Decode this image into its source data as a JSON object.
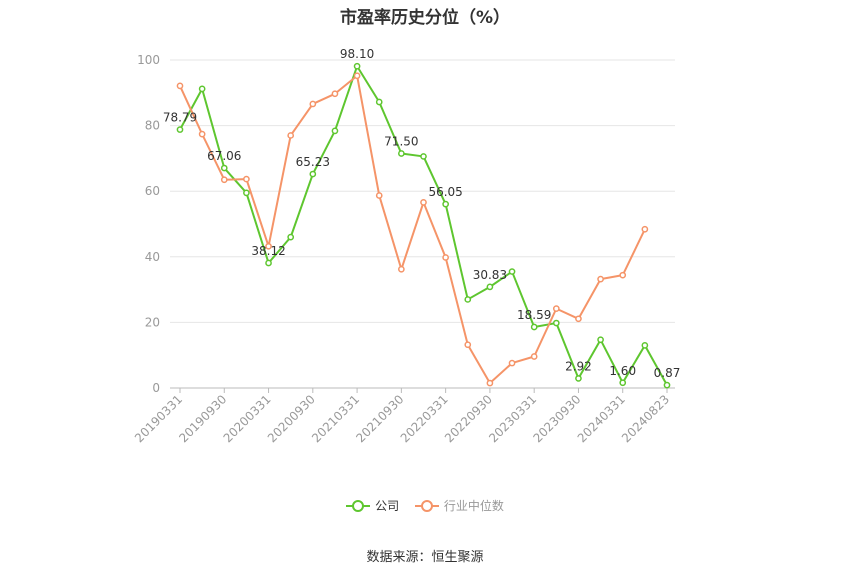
{
  "chart_data": {
    "type": "line",
    "title": "市盈率历史分位（%）",
    "x": [
      "20190331",
      "20190630",
      "20190930",
      "20191231",
      "20200331",
      "20200630",
      "20200930",
      "20201231",
      "20210331",
      "20210630",
      "20210930",
      "20211231",
      "20220331",
      "20220630",
      "20220930",
      "20221231",
      "20230331",
      "20230630",
      "20230930",
      "20231231",
      "20240331",
      "20240630",
      "20240823"
    ],
    "x_tick_labels": [
      "20190331",
      "20190930",
      "20200331",
      "20200930",
      "20210331",
      "20210930",
      "20220331",
      "20220930",
      "20230331",
      "20230930",
      "20240331",
      "20240823"
    ],
    "ylim": [
      0,
      100
    ],
    "yticks": [
      0,
      20,
      40,
      60,
      80,
      100
    ],
    "grid": true,
    "legend_position": "bottom",
    "series": [
      {
        "name": "公司",
        "color": "#5ec62f",
        "values": [
          78.79,
          91.2,
          67.06,
          59.5,
          38.12,
          46.0,
          65.23,
          78.4,
          98.1,
          87.2,
          71.5,
          70.6,
          56.05,
          27.0,
          30.83,
          35.5,
          18.59,
          19.8,
          2.92,
          14.7,
          1.6,
          13.0,
          0.87
        ],
        "data_labels": [
          {
            "index": 0,
            "text": "78.79"
          },
          {
            "index": 2,
            "text": "67.06"
          },
          {
            "index": 4,
            "text": "38.12"
          },
          {
            "index": 6,
            "text": "65.23"
          },
          {
            "index": 8,
            "text": "98.10"
          },
          {
            "index": 10,
            "text": "71.50"
          },
          {
            "index": 12,
            "text": "56.05"
          },
          {
            "index": 14,
            "text": "30.83"
          },
          {
            "index": 16,
            "text": "18.59"
          },
          {
            "index": 18,
            "text": "2.92"
          },
          {
            "index": 20,
            "text": "1.60"
          },
          {
            "index": 22,
            "text": "0.87"
          }
        ]
      },
      {
        "name": "行业中位数",
        "color": "#f59468",
        "values": [
          92.1,
          77.4,
          63.5,
          63.7,
          43.2,
          77.0,
          86.6,
          89.7,
          95.2,
          58.7,
          36.2,
          56.6,
          39.8,
          13.2,
          1.5,
          7.6,
          9.6,
          24.2,
          21.1,
          33.2,
          34.4,
          48.4,
          null
        ]
      }
    ]
  },
  "footer": {
    "source": "数据来源：恒生聚源"
  }
}
